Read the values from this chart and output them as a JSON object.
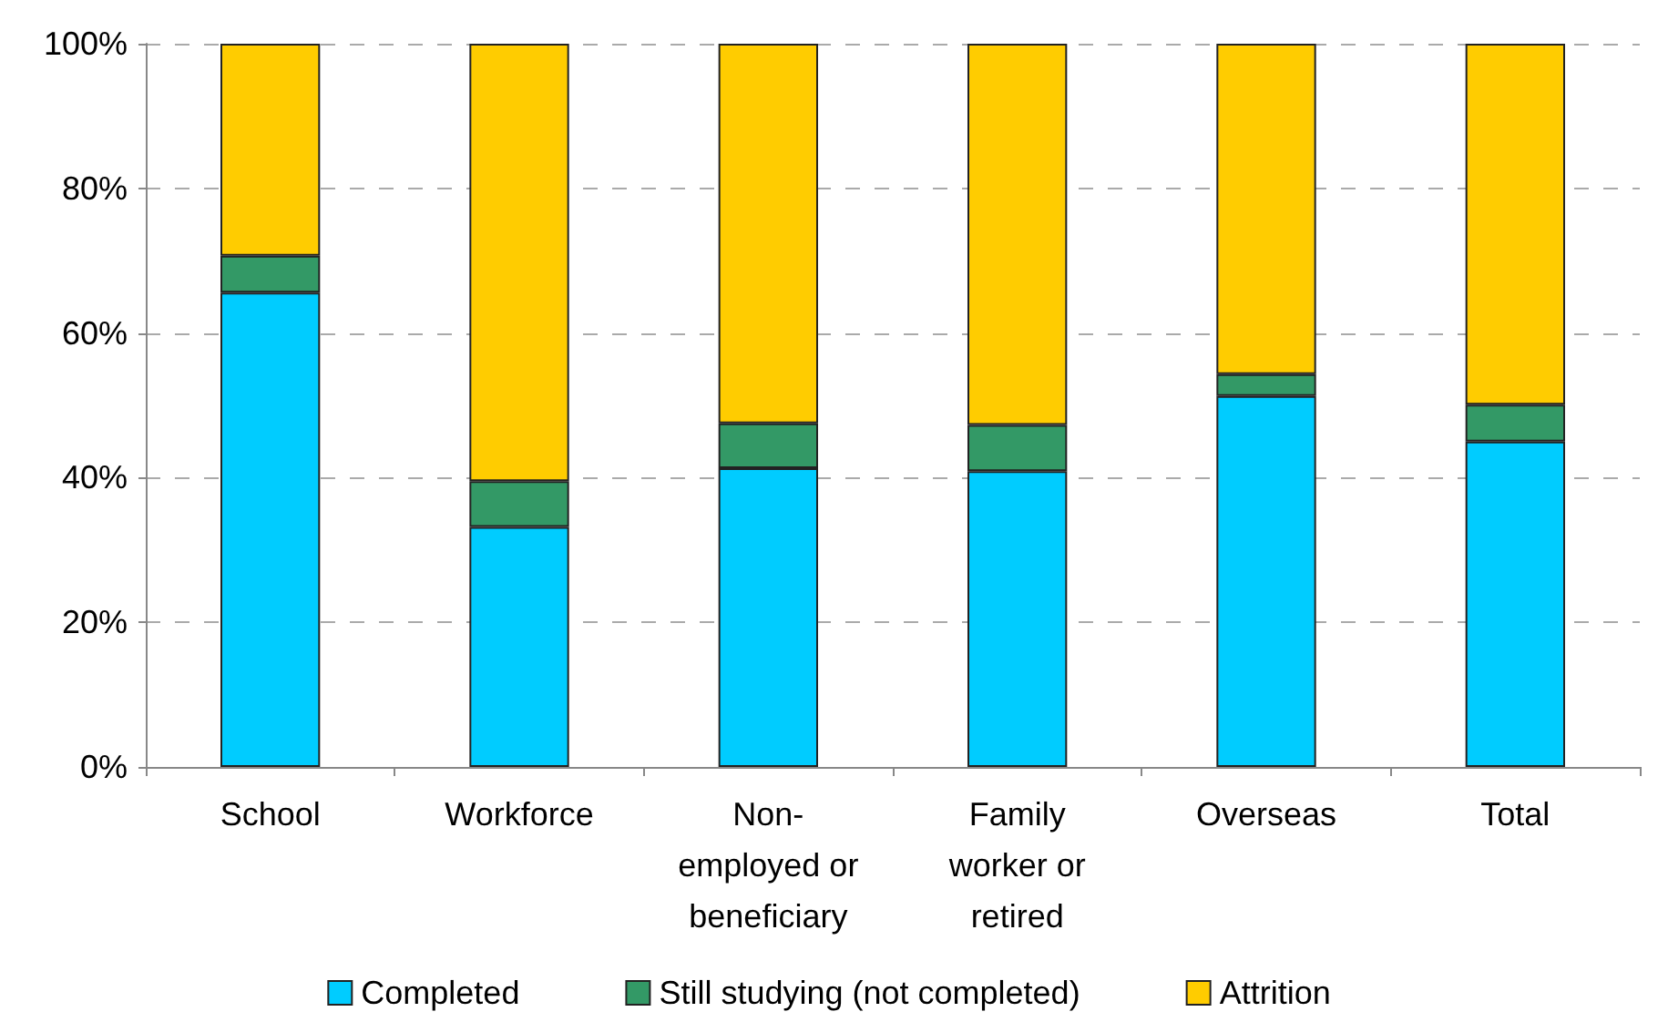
{
  "chart_data": {
    "type": "bar",
    "stacked": true,
    "categories": [
      "School",
      "Workforce",
      "Non-employed or beneficiary",
      "Family worker or retired",
      "Overseas",
      "Total"
    ],
    "series": [
      {
        "name": "Completed",
        "color": "#00ccff",
        "values": [
          65.6,
          33.2,
          41.3,
          40.9,
          51.3,
          45.0
        ]
      },
      {
        "name": "Still studying (not completed)",
        "color": "#339966",
        "values": [
          5.1,
          6.3,
          6.2,
          6.4,
          3.0,
          5.1
        ]
      },
      {
        "name": "Attrition",
        "color": "#ffcc00",
        "values": [
          29.3,
          60.5,
          52.5,
          52.7,
          45.7,
          49.9
        ]
      }
    ],
    "ylim": [
      0,
      100
    ],
    "yticks": [
      {
        "value": 0,
        "label": "0%"
      },
      {
        "value": 20,
        "label": "20%"
      },
      {
        "value": 40,
        "label": "40%"
      },
      {
        "value": 60,
        "label": "60%"
      },
      {
        "value": 80,
        "label": "80%"
      },
      {
        "value": 100,
        "label": "100%"
      }
    ],
    "grid": "y",
    "legend": "bottom"
  }
}
